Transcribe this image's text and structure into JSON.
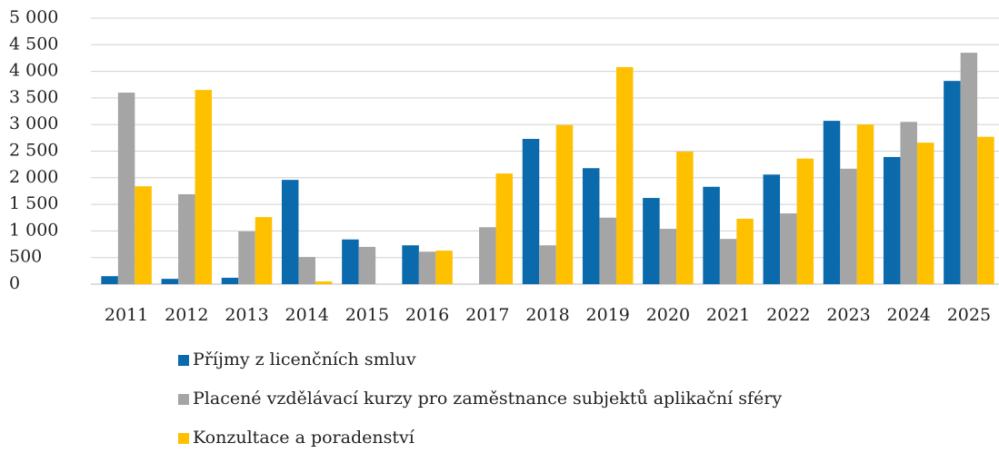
{
  "chart_data": {
    "type": "bar",
    "categories": [
      "2011",
      "2012",
      "2013",
      "2014",
      "2015",
      "2016",
      "2017",
      "2018",
      "2019",
      "2020",
      "2021",
      "2022",
      "2023",
      "2024",
      "2025"
    ],
    "series": [
      {
        "name": "Příjmy z licenčních smluv",
        "color": "#0a6aab",
        "values": [
          150,
          100,
          120,
          1960,
          840,
          730,
          0,
          2730,
          2180,
          1620,
          1830,
          2060,
          3070,
          2390,
          3820
        ]
      },
      {
        "name": "Placené vzdělávací kurzy pro zaměstnance subjektů aplikační sféry",
        "color": "#a5a5a5",
        "values": [
          3600,
          1690,
          990,
          510,
          700,
          610,
          1070,
          730,
          1250,
          1040,
          850,
          1330,
          2170,
          3050,
          4350
        ]
      },
      {
        "name": "Konzultace a poradenství",
        "color": "#ffc000",
        "values": [
          1840,
          3650,
          1260,
          50,
          0,
          630,
          2080,
          2990,
          4080,
          2490,
          1230,
          2360,
          3000,
          2660,
          2770
        ]
      }
    ],
    "ylim": [
      0,
      5000
    ],
    "yticks": [
      0,
      500,
      {
        "value": 1000,
        "label": "1 000"
      },
      {
        "value": 1500,
        "label": "1 500"
      },
      {
        "value": 2000,
        "label": "2 000"
      },
      {
        "value": 2500,
        "label": "2 500"
      },
      {
        "value": 3000,
        "label": "3 000"
      },
      {
        "value": 3500,
        "label": "3 500"
      },
      {
        "value": 4000,
        "label": "4 000"
      },
      {
        "value": 4500,
        "label": "4 500"
      },
      {
        "value": 5000,
        "label": "5 000"
      }
    ],
    "grid": true
  }
}
